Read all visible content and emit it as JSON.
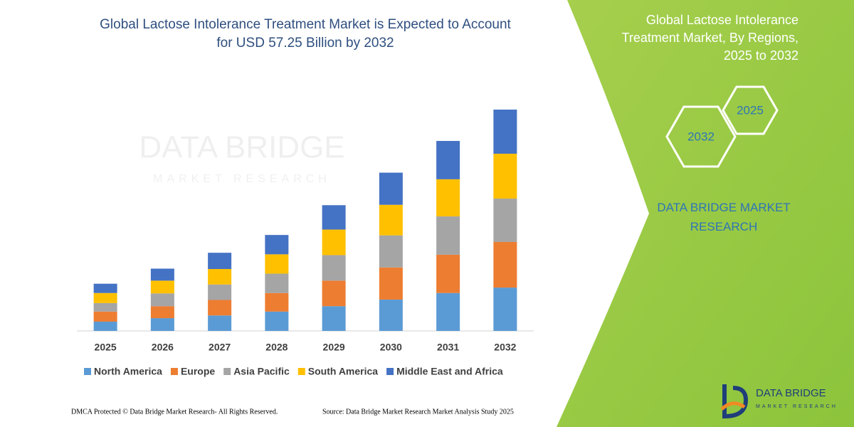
{
  "chart_data": {
    "type": "bar",
    "stacked": true,
    "title": "Global Lactose Intolerance Treatment Market is Expected to Account for USD 57.25 Billion by 2032",
    "categories": [
      "2025",
      "2026",
      "2027",
      "2028",
      "2029",
      "2030",
      "2031",
      "2032"
    ],
    "series": [
      {
        "name": "North America",
        "color": "#5b9bd5",
        "values": [
          2.4,
          3.3,
          4.0,
          5.0,
          6.4,
          8.1,
          9.8,
          11.2
        ]
      },
      {
        "name": "Europe",
        "color": "#ed7d31",
        "values": [
          2.6,
          3.1,
          4.0,
          4.8,
          6.6,
          8.3,
          9.9,
          11.8
        ]
      },
      {
        "name": "Asia Pacific",
        "color": "#a5a5a5",
        "values": [
          2.2,
          3.3,
          4.0,
          5.0,
          6.6,
          8.3,
          9.9,
          11.2
        ]
      },
      {
        "name": "South America",
        "color": "#ffc000",
        "values": [
          2.6,
          3.3,
          4.0,
          5.0,
          6.6,
          7.9,
          9.6,
          11.6
        ]
      },
      {
        "name": "Middle East and Africa",
        "color": "#4472c4",
        "values": [
          2.4,
          3.1,
          4.2,
          5.0,
          6.3,
          8.3,
          9.9,
          11.4
        ]
      }
    ]
  },
  "panel": {
    "title": "Global Lactose Intolerance Treatment Market, By Regions, 2025 to 2032",
    "hex_start": "2025",
    "hex_end": "2032",
    "brand": "DATA BRIDGE MARKET RESEARCH"
  },
  "watermark": {
    "name": "DATA BRIDGE",
    "tagline": "MARKET RESEARCH"
  },
  "footer": {
    "copyright": "DMCA Protected © Data Bridge Market Research- All Rights Reserved.",
    "source": "Source: Data Bridge Market Research  Market Analysis Study 2025"
  },
  "logo": {
    "name": "DATA BRIDGE",
    "tagline": "MARKET RESEARCH"
  }
}
